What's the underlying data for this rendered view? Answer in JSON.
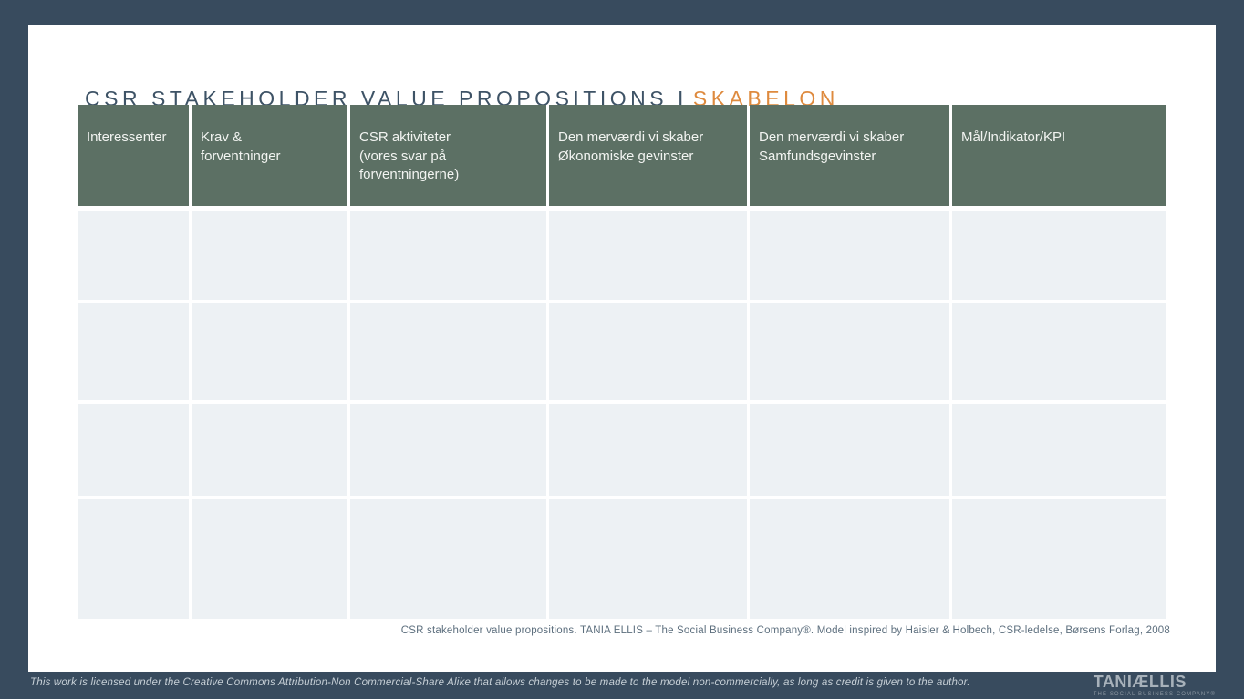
{
  "title": {
    "main": "CSR STAKEHOLDER VALUE PROPOSITIONS I",
    "accent": "SKABELON"
  },
  "table": {
    "headers": [
      "Interessenter",
      "Krav &\nforventninger",
      "CSR aktiviteter\n(vores svar på\nforventningerne)",
      "Den merværdi vi skaber\nØkonomiske gevinster",
      "Den merværdi vi skaber\nSamfundsgevinster",
      "Mål/Indikator/KPI"
    ],
    "empty_rows": 4
  },
  "caption": "CSR stakeholder value propositions. TANIA ELLIS – The Social Business Company®. Model inspired by Haisler & Holbech, CSR-ledelse, Børsens Forlag, 2008",
  "footer": {
    "license": "This work is licensed under the Creative Commons Attribution-Non Commercial-Share Alike that allows changes to be made to the model non-commercially, as long as credit is given to the author.",
    "logo_brand": "TANIÆLLIS",
    "logo_tagline": "THE SOCIAL BUSINESS COMPANY®"
  },
  "colors": {
    "background_navy": "#384B5E",
    "header_green": "#5C7064",
    "accent_orange": "#DE8A3E",
    "cell_gray": "#EDF1F4",
    "title_navy": "#3E5366"
  }
}
